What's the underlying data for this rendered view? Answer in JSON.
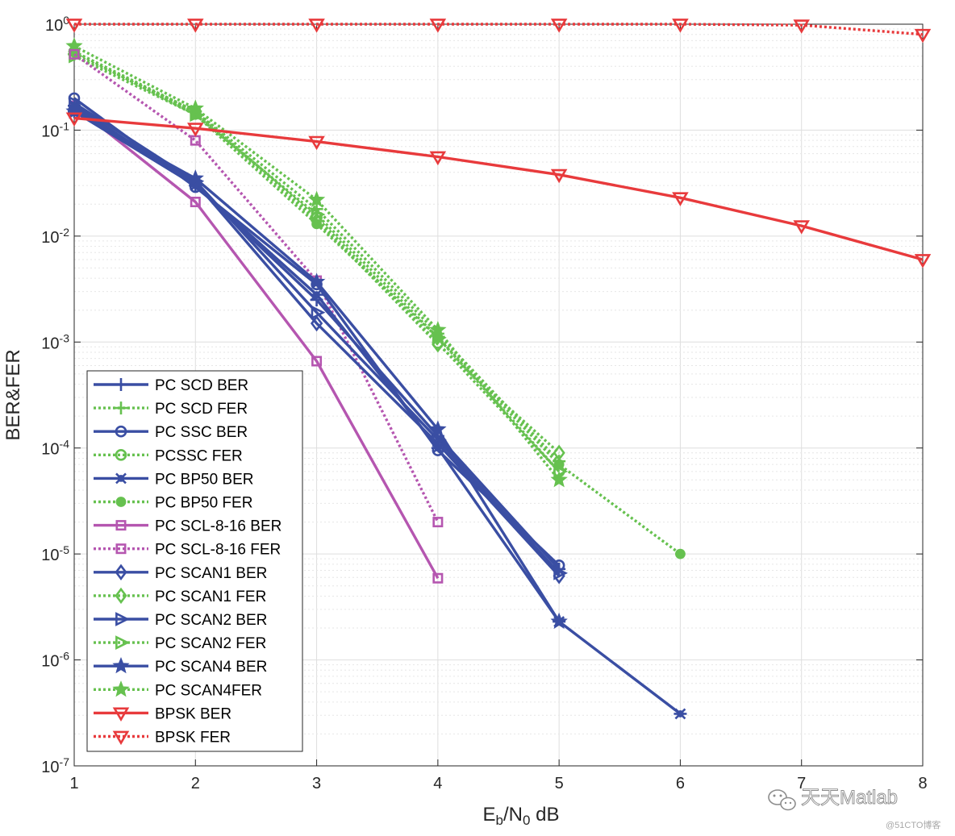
{
  "chart_data": {
    "type": "line",
    "xlabel_main": "E",
    "xlabel_sub1": "b",
    "xlabel_mid": "/N",
    "xlabel_sub2": "0",
    "xlabel_tail": " dB",
    "ylabel": "BER&FER",
    "y_scale": "log",
    "xlim": [
      1,
      8
    ],
    "ylim": [
      1e-07,
      1
    ],
    "grid": true,
    "legend_position": "bottom-left",
    "x_ticks": [
      1,
      2,
      3,
      4,
      5,
      6,
      7,
      8
    ],
    "y_ticks": [
      {
        "exp": -7,
        "base": "10",
        "sup": "-7"
      },
      {
        "exp": -6,
        "base": "10",
        "sup": "-6"
      },
      {
        "exp": -5,
        "base": "10",
        "sup": "-5"
      },
      {
        "exp": -4,
        "base": "10",
        "sup": "-4"
      },
      {
        "exp": -3,
        "base": "10",
        "sup": "-3"
      },
      {
        "exp": -2,
        "base": "10",
        "sup": "-2"
      },
      {
        "exp": -1,
        "base": "10",
        "sup": "-1"
      },
      {
        "exp": 0,
        "base": "10",
        "sup": "0"
      }
    ],
    "series": [
      {
        "name": "PC SCD BER",
        "color": "#3a4ea3",
        "dash": false,
        "marker": "plus",
        "x": [
          1,
          2,
          3,
          4,
          5
        ],
        "y": [
          0.15,
          0.03,
          0.0025,
          0.00013,
          7.2e-06
        ]
      },
      {
        "name": "PC SCD FER",
        "color": "#66c14f",
        "dash": true,
        "marker": "plus",
        "x": [
          1,
          2,
          3,
          4,
          5
        ],
        "y": [
          0.52,
          0.15,
          0.018,
          0.0012,
          7.5e-05
        ]
      },
      {
        "name": "PC SSC BER",
        "color": "#3a4ea3",
        "dash": false,
        "marker": "circle",
        "x": [
          1,
          2,
          3,
          4,
          5
        ],
        "y": [
          0.2,
          0.029,
          0.0035,
          9.5e-05,
          7.8e-06
        ]
      },
      {
        "name": "PCSSC FER",
        "color": "#66c14f",
        "dash": true,
        "marker": "circle",
        "x": [
          1,
          2,
          3,
          4,
          5
        ],
        "y": [
          0.55,
          0.15,
          0.015,
          0.00098,
          6e-05
        ]
      },
      {
        "name": "PC BP50 BER",
        "color": "#3a4ea3",
        "dash": false,
        "marker": "asterisk",
        "x": [
          1,
          2,
          3,
          4,
          5,
          6
        ],
        "y": [
          0.17,
          0.03,
          0.0028,
          0.0001,
          2.3e-06,
          3.1e-07
        ]
      },
      {
        "name": "PC BP50 FER",
        "color": "#66c14f",
        "dash": true,
        "marker": "dot",
        "x": [
          1,
          2,
          3,
          4,
          5,
          6
        ],
        "y": [
          0.55,
          0.14,
          0.013,
          0.0011,
          7e-05,
          1e-05
        ]
      },
      {
        "name": "PC SCL-8-16 BER",
        "color": "#b556b0",
        "dash": false,
        "marker": "square",
        "x": [
          1,
          2,
          3,
          4
        ],
        "y": [
          0.17,
          0.021,
          0.00066,
          5.9e-06
        ]
      },
      {
        "name": "PC SCL-8-16 FER",
        "color": "#b556b0",
        "dash": true,
        "marker": "square",
        "x": [
          1,
          2,
          3,
          4
        ],
        "y": [
          0.52,
          0.08,
          0.0038,
          2e-05
        ]
      },
      {
        "name": "PC SCAN1 BER",
        "color": "#3a4ea3",
        "dash": false,
        "marker": "diamond",
        "x": [
          1,
          2,
          3,
          4,
          5
        ],
        "y": [
          0.16,
          0.032,
          0.0015,
          0.00011,
          6.2e-06
        ]
      },
      {
        "name": "PC SCAN1 FER",
        "color": "#66c14f",
        "dash": true,
        "marker": "diamond",
        "x": [
          1,
          2,
          3,
          4,
          5
        ],
        "y": [
          0.55,
          0.15,
          0.014,
          0.00095,
          9e-05
        ]
      },
      {
        "name": "PC SCAN2 BER",
        "color": "#3a4ea3",
        "dash": false,
        "marker": "triangle-right",
        "x": [
          1,
          2,
          3,
          4,
          5
        ],
        "y": [
          0.18,
          0.033,
          0.0019,
          0.00012,
          6.6e-06
        ]
      },
      {
        "name": "PC SCAN2 FER",
        "color": "#66c14f",
        "dash": true,
        "marker": "triangle-right",
        "x": [
          1,
          2,
          3,
          4,
          5
        ],
        "y": [
          0.5,
          0.14,
          0.016,
          0.0011,
          6e-05
        ]
      },
      {
        "name": "PC SCAN4 BER",
        "color": "#3a4ea3",
        "dash": false,
        "marker": "star",
        "x": [
          1,
          2,
          3,
          4,
          5
        ],
        "y": [
          0.15,
          0.035,
          0.0037,
          0.00015,
          2.3e-06
        ]
      },
      {
        "name": "PC SCAN4FER",
        "color": "#66c14f",
        "dash": true,
        "marker": "star",
        "x": [
          1,
          2,
          3,
          4,
          5
        ],
        "y": [
          0.62,
          0.16,
          0.022,
          0.0013,
          5e-05
        ]
      },
      {
        "name": "BPSK BER",
        "color": "#e83a3c",
        "dash": false,
        "marker": "triangle-down",
        "x": [
          1,
          2,
          3,
          4,
          5,
          6,
          7,
          8
        ],
        "y": [
          0.13,
          0.104,
          0.078,
          0.056,
          0.038,
          0.023,
          0.0125,
          0.006
        ]
      },
      {
        "name": "BPSK FER",
        "color": "#e83a3c",
        "dash": true,
        "marker": "triangle-down",
        "x": [
          1,
          2,
          3,
          4,
          5,
          6,
          7,
          8
        ],
        "y": [
          1,
          1,
          1,
          1,
          1,
          1,
          0.98,
          0.8
        ]
      }
    ]
  },
  "watermark": {
    "text": "天天Matlab",
    "credit": "@51CTO博客"
  }
}
